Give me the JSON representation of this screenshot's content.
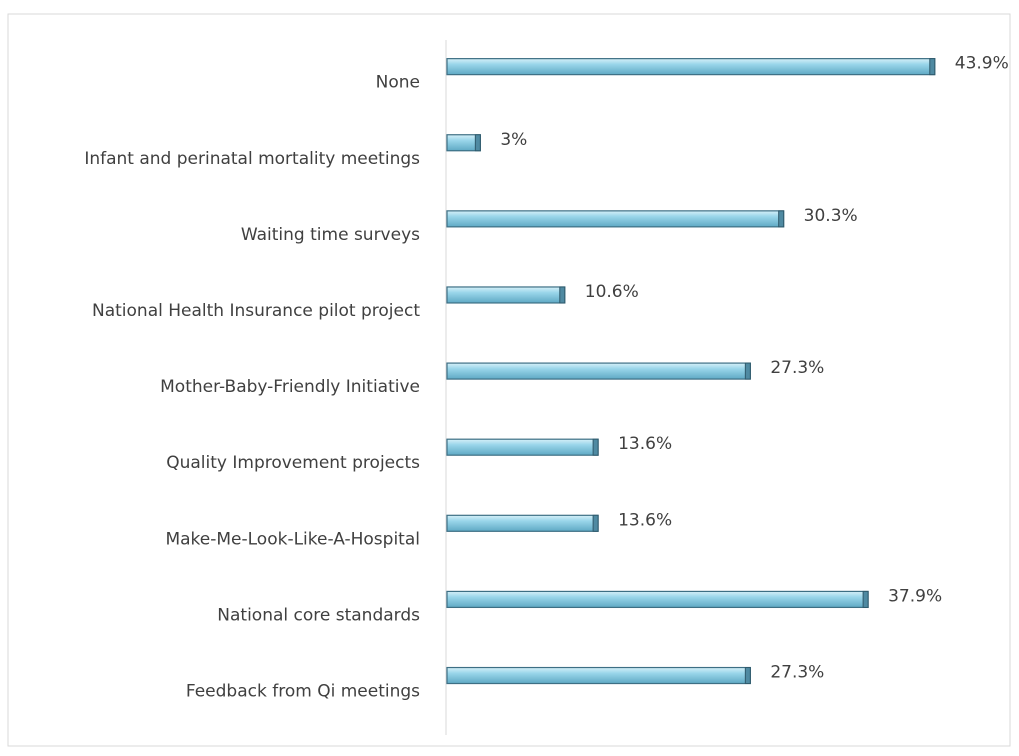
{
  "chart_data": {
    "type": "bar",
    "orientation": "horizontal",
    "categories": [
      "None",
      "Infant and perinatal mortality meetings",
      "Waiting time surveys",
      "National Health Insurance pilot project",
      "Mother-Baby-Friendly Initiative",
      "Quality Improvement projects",
      "Make-Me-Look-Like-A-Hospital",
      "National core standards",
      "Feedback from Qi meetings"
    ],
    "values": [
      43.9,
      3,
      30.3,
      10.6,
      27.3,
      13.6,
      13.6,
      37.9,
      27.3
    ],
    "value_labels": [
      "43.9%",
      "3%",
      "30.3%",
      "10.6%",
      "27.3%",
      "13.6%",
      "13.6%",
      "37.9%",
      "27.3%"
    ],
    "color": "#8fd0e6",
    "xlim": [
      0,
      45
    ]
  }
}
